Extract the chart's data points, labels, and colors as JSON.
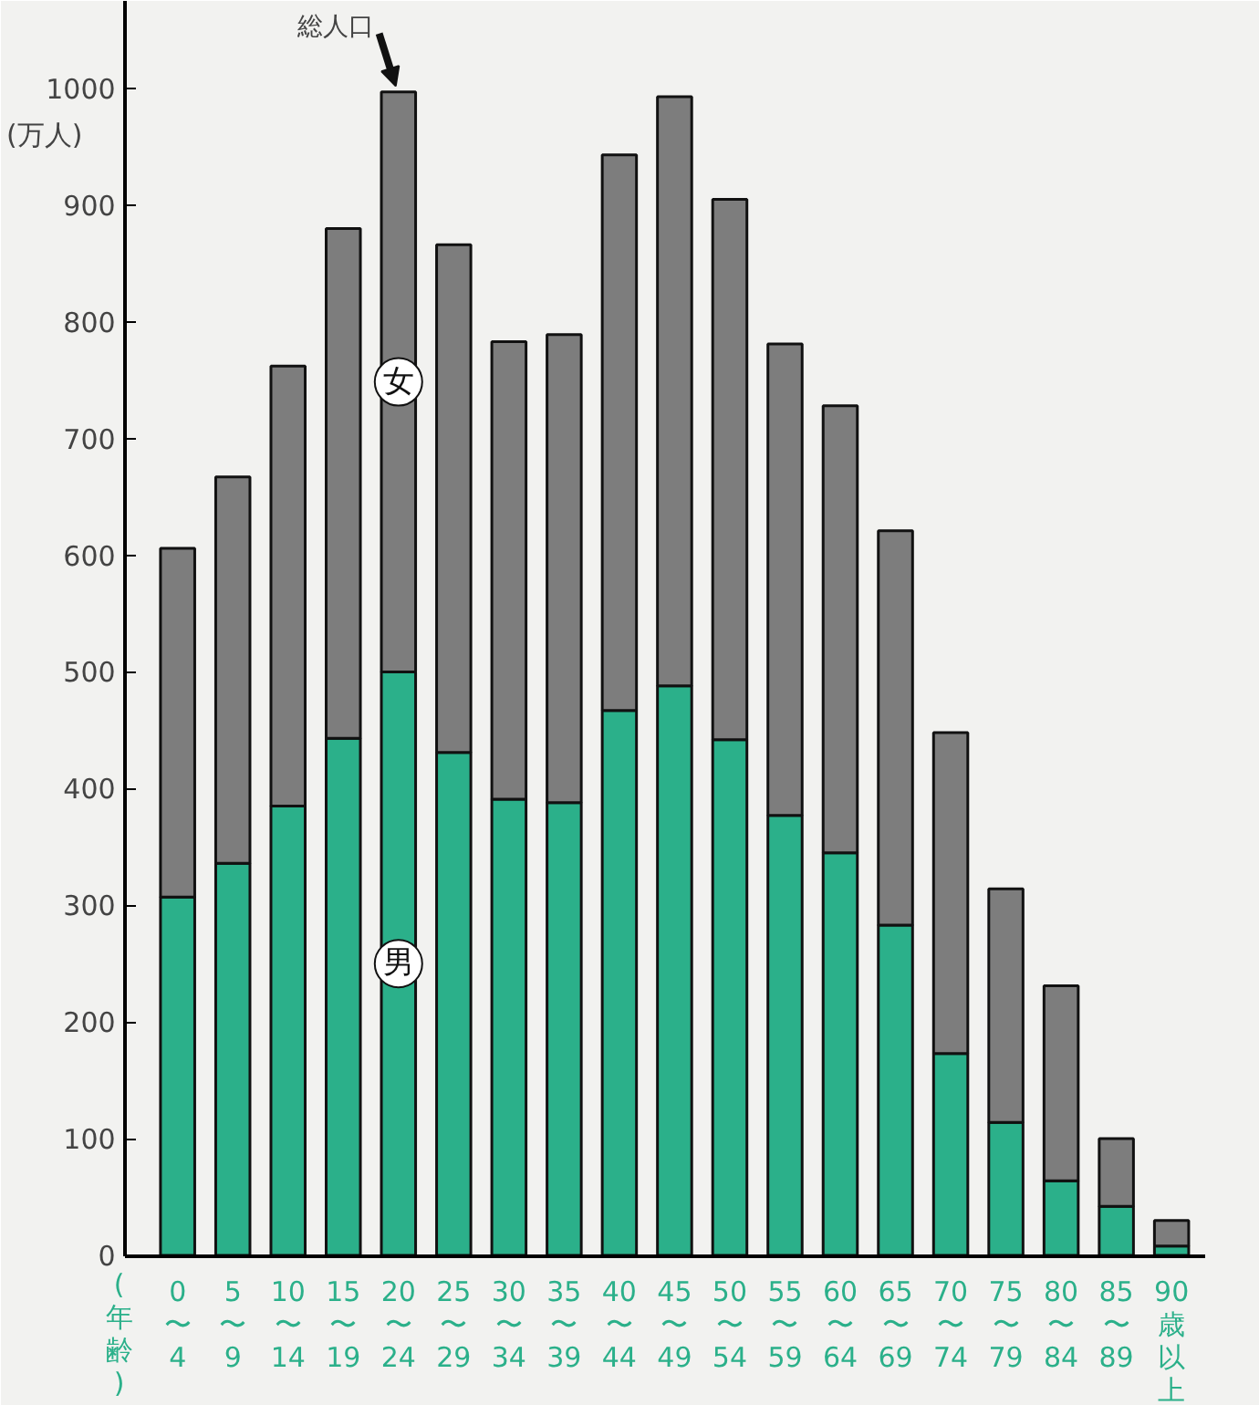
{
  "chart_data": {
    "type": "bar",
    "stacked": true,
    "categories": [
      "0〜4",
      "5〜9",
      "10〜14",
      "15〜19",
      "20〜24",
      "25〜29",
      "30〜34",
      "35〜39",
      "40〜44",
      "45〜49",
      "50〜54",
      "55〜59",
      "60〜64",
      "65〜69",
      "70〜74",
      "75〜79",
      "80〜84",
      "85〜89",
      "90歳以上"
    ],
    "series": [
      {
        "name": "男",
        "color": "#2bb08a",
        "values": [
          307,
          336,
          385,
          443,
          500,
          431,
          391,
          388,
          467,
          488,
          442,
          377,
          345,
          283,
          173,
          114,
          64,
          42,
          8
        ]
      },
      {
        "name": "女",
        "color": "#7d7d7d",
        "values": [
          299,
          331,
          377,
          437,
          497,
          435,
          392,
          401,
          476,
          505,
          463,
          404,
          383,
          338,
          275,
          200,
          167,
          58,
          22
        ]
      }
    ],
    "ylabel": "(万人)",
    "xlabel": "(年齢)",
    "ylim": [
      0,
      1075
    ],
    "yticks": [
      0,
      100,
      200,
      300,
      400,
      500,
      600,
      700,
      800,
      900,
      1000
    ],
    "annotations": [
      {
        "text": "総人口",
        "x": "20〜24",
        "y": 997
      }
    ],
    "grid": false
  }
}
